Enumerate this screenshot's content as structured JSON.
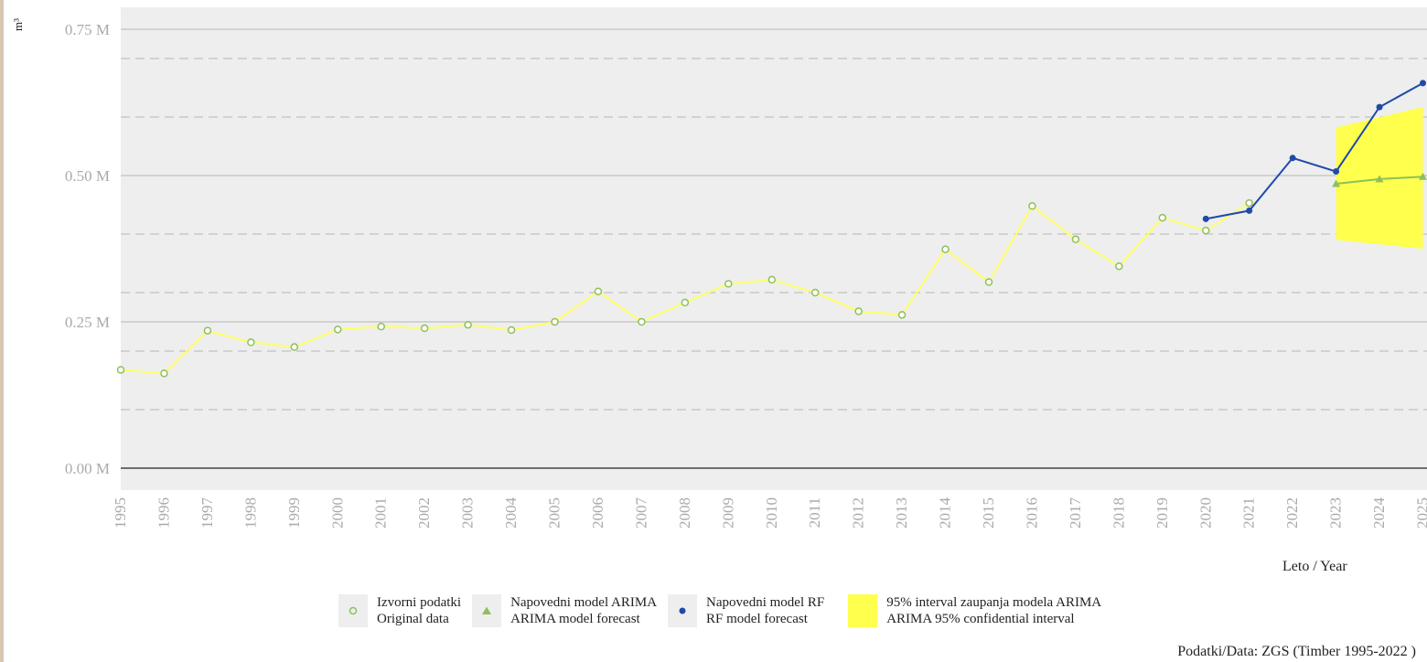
{
  "chart_data": {
    "type": "line",
    "ylabel": "m³",
    "xlabel": "Leto / Year",
    "ylim": [
      0,
      0.75
    ],
    "y_ticks": [
      "0.00 M",
      "0.25 M",
      "0.50 M",
      "0.75 M"
    ],
    "y_tick_values": [
      0,
      0.25,
      0.5,
      0.75
    ],
    "y_minor_grid": [
      0.1,
      0.2,
      0.3,
      0.4,
      0.6,
      0.7
    ],
    "x": [
      "1995",
      "1996",
      "1997",
      "1998",
      "1999",
      "2000",
      "2001",
      "2002",
      "2003",
      "2004",
      "2005",
      "2006",
      "2007",
      "2008",
      "2009",
      "2010",
      "2011",
      "2012",
      "2013",
      "2014",
      "2015",
      "2016",
      "2017",
      "2018",
      "2019",
      "2020",
      "2021",
      "2022",
      "2023",
      "2024",
      "2025"
    ],
    "grid": true,
    "legend_position": "bottom",
    "series": [
      {
        "name": "Izvorni podatki / Original data",
        "x": [
          "1995",
          "1996",
          "1997",
          "1998",
          "1999",
          "2000",
          "2001",
          "2002",
          "2003",
          "2004",
          "2005",
          "2006",
          "2007",
          "2008",
          "2009",
          "2010",
          "2011",
          "2012",
          "2013",
          "2014",
          "2015",
          "2016",
          "2017",
          "2018",
          "2019",
          "2020",
          "2021"
        ],
        "values": [
          0.168,
          0.162,
          0.235,
          0.215,
          0.207,
          0.237,
          0.242,
          0.239,
          0.245,
          0.236,
          0.25,
          0.302,
          0.25,
          0.283,
          0.315,
          0.322,
          0.3,
          0.268,
          0.262,
          0.374,
          0.318,
          0.448,
          0.391,
          0.345,
          0.428,
          0.406,
          0.453
        ],
        "color": "#ffff66",
        "marker_color": "#8fbf5a"
      },
      {
        "name": "Napovedni model ARIMA / ARIMA model forecast",
        "x": [
          "2023",
          "2024",
          "2025"
        ],
        "values": [
          0.486,
          0.494,
          0.498
        ],
        "color": "#8fbf5a"
      },
      {
        "name": "Napovedni model RF / RF model forecast",
        "x": [
          "2020",
          "2021",
          "2022",
          "2023",
          "2024",
          "2025"
        ],
        "values": [
          0.426,
          0.44,
          0.53,
          0.507,
          0.617,
          0.658
        ],
        "color": "#1f4aa8"
      }
    ],
    "interval": {
      "name": "95% interval zaupanja modela ARIMA / ARIMA 95% confidential interval",
      "x": [
        "2023",
        "2025"
      ],
      "upper": [
        0.582,
        0.617
      ],
      "lower": [
        0.39,
        0.375
      ],
      "color": "#ffff4d"
    }
  },
  "legend": {
    "items": [
      {
        "line1": "Izvorni podatki",
        "line2": "Original data"
      },
      {
        "line1": "Napovedni model ARIMA",
        "line2": "ARIMA model forecast"
      },
      {
        "line1": "Napovedni model RF",
        "line2": "RF model forecast"
      },
      {
        "line1": "95% interval zaupanja modela ARIMA",
        "line2": "ARIMA 95% confidential interval"
      }
    ]
  },
  "source": "Podatki/Data: ZGS (Timber 1995-2022 )"
}
